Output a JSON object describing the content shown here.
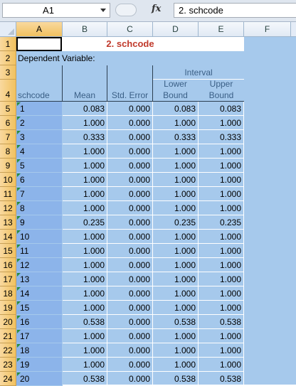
{
  "formula_bar": {
    "name_box": "A1",
    "fx_label": "fx",
    "formula": "2. schcode"
  },
  "columns": [
    "A",
    "B",
    "C",
    "D",
    "E",
    "F"
  ],
  "rows": [
    "1",
    "2",
    "3",
    "4",
    "5",
    "6",
    "7",
    "8",
    "9",
    "10",
    "11",
    "12",
    "13",
    "14",
    "15",
    "16",
    "17",
    "18",
    "19",
    "20",
    "21",
    "22",
    "23",
    "24"
  ],
  "table": {
    "title": "2. schcode",
    "dependent_label": "Dependent Variable:",
    "interval_label": "Interval",
    "col_schcode": "schcode",
    "col_mean": "Mean",
    "col_std_error": "Std. Error",
    "col_lower_1": "Lower",
    "col_lower_2": "Bound",
    "col_upper_1": "Upper",
    "col_upper_2": "Bound",
    "data": [
      [
        "1",
        "0.083",
        "0.000",
        "0.083",
        "0.083"
      ],
      [
        "2",
        "1.000",
        "0.000",
        "1.000",
        "1.000"
      ],
      [
        "3",
        "0.333",
        "0.000",
        "0.333",
        "0.333"
      ],
      [
        "4",
        "1.000",
        "0.000",
        "1.000",
        "1.000"
      ],
      [
        "5",
        "1.000",
        "0.000",
        "1.000",
        "1.000"
      ],
      [
        "6",
        "1.000",
        "0.000",
        "1.000",
        "1.000"
      ],
      [
        "7",
        "1.000",
        "0.000",
        "1.000",
        "1.000"
      ],
      [
        "8",
        "1.000",
        "0.000",
        "1.000",
        "1.000"
      ],
      [
        "9",
        "0.235",
        "0.000",
        "0.235",
        "0.235"
      ],
      [
        "10",
        "1.000",
        "0.000",
        "1.000",
        "1.000"
      ],
      [
        "11",
        "1.000",
        "0.000",
        "1.000",
        "1.000"
      ],
      [
        "12",
        "1.000",
        "0.000",
        "1.000",
        "1.000"
      ],
      [
        "13",
        "1.000",
        "0.000",
        "1.000",
        "1.000"
      ],
      [
        "14",
        "1.000",
        "0.000",
        "1.000",
        "1.000"
      ],
      [
        "15",
        "1.000",
        "0.000",
        "1.000",
        "1.000"
      ],
      [
        "16",
        "0.538",
        "0.000",
        "0.538",
        "0.538"
      ],
      [
        "17",
        "1.000",
        "0.000",
        "1.000",
        "1.000"
      ],
      [
        "18",
        "1.000",
        "0.000",
        "1.000",
        "1.000"
      ],
      [
        "19",
        "1.000",
        "0.000",
        "1.000",
        "1.000"
      ],
      [
        "20",
        "0.538",
        "0.000",
        "0.538",
        "0.538"
      ]
    ]
  }
}
